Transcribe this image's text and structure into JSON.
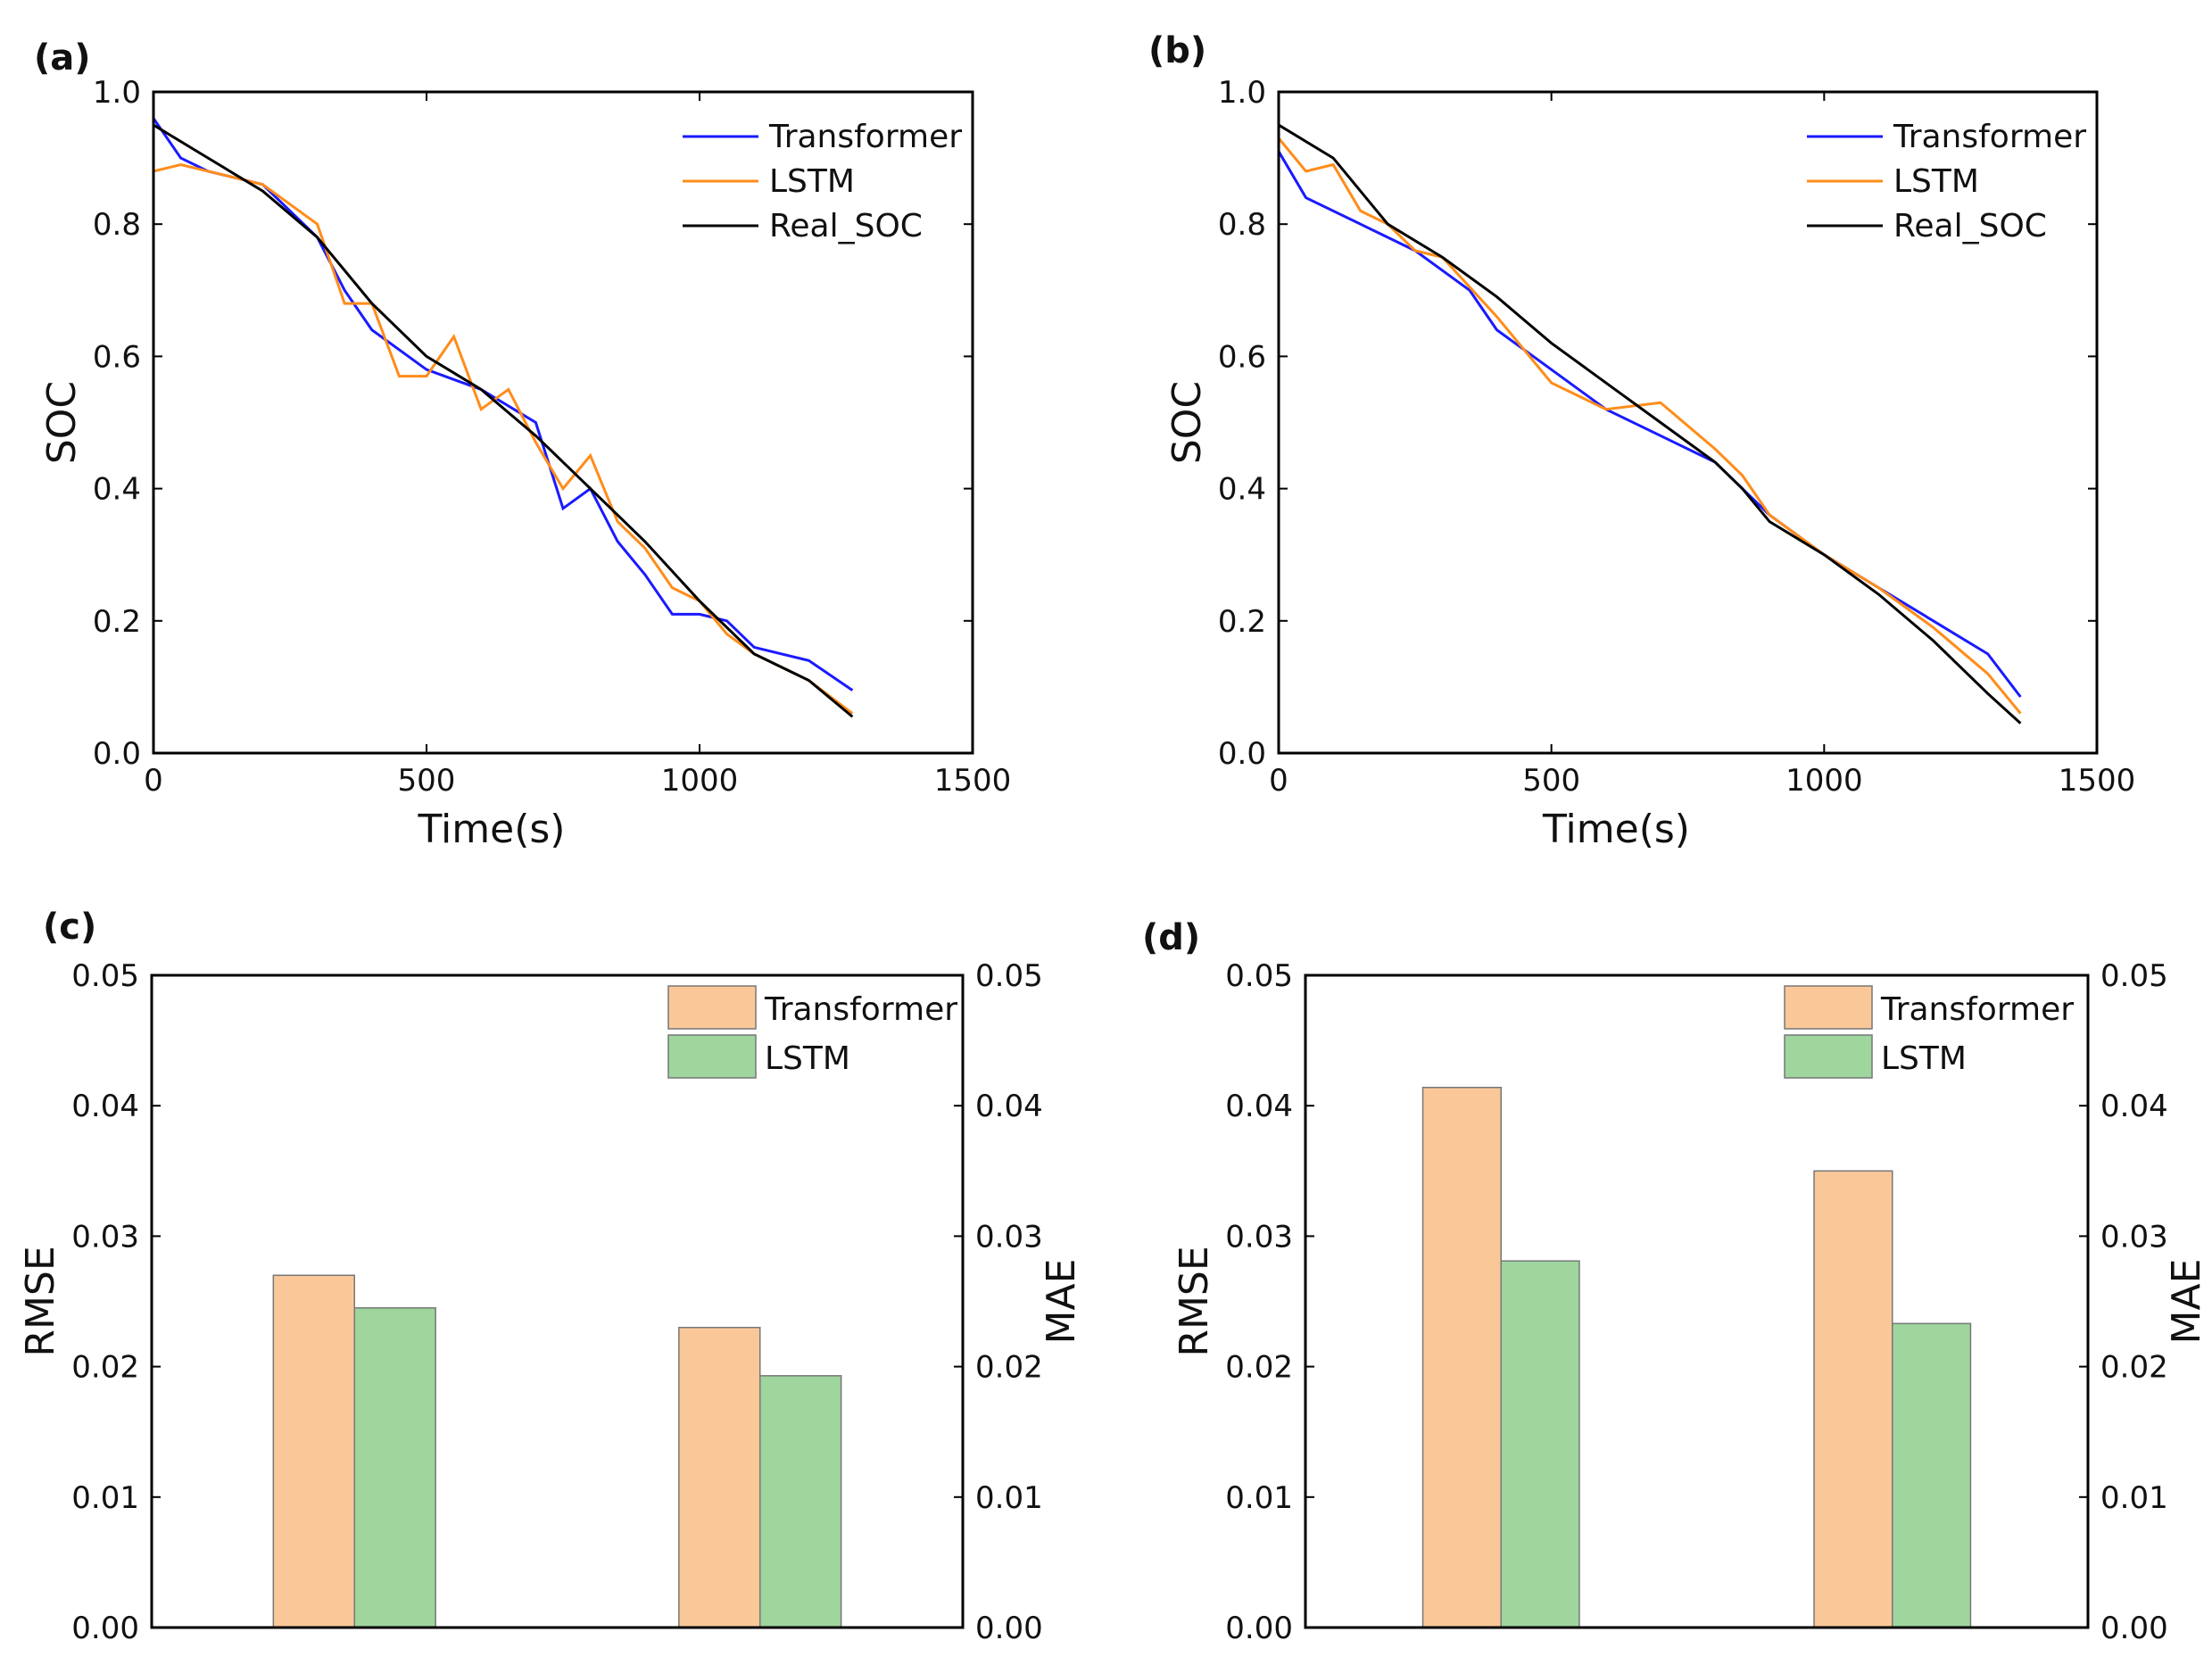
{
  "chart_data": [
    {
      "panel": "(a)",
      "type": "line",
      "xlabel": "Time(s)",
      "ylabel": "SOC",
      "xlim": [
        0,
        1500
      ],
      "ylim": [
        0,
        1.0
      ],
      "xticks": [
        0,
        500,
        1000,
        1500
      ],
      "yticks": [
        "0.0",
        "0.2",
        "0.4",
        "0.6",
        "0.8",
        "1.0"
      ],
      "legend": "top-right",
      "series": [
        {
          "name": "Transformer",
          "color": "#1a1aff",
          "points": [
            [
              0,
              0.96
            ],
            [
              50,
              0.9
            ],
            [
              100,
              0.88
            ],
            [
              200,
              0.86
            ],
            [
              300,
              0.78
            ],
            [
              350,
              0.7
            ],
            [
              400,
              0.64
            ],
            [
              500,
              0.58
            ],
            [
              600,
              0.55
            ],
            [
              700,
              0.5
            ],
            [
              750,
              0.37
            ],
            [
              800,
              0.4
            ],
            [
              850,
              0.32
            ],
            [
              900,
              0.27
            ],
            [
              950,
              0.21
            ],
            [
              1000,
              0.21
            ],
            [
              1050,
              0.2
            ],
            [
              1100,
              0.16
            ],
            [
              1200,
              0.14
            ],
            [
              1280,
              0.095
            ]
          ]
        },
        {
          "name": "LSTM",
          "color": "#ff8c1a",
          "points": [
            [
              0,
              0.88
            ],
            [
              50,
              0.89
            ],
            [
              100,
              0.88
            ],
            [
              200,
              0.86
            ],
            [
              250,
              0.83
            ],
            [
              300,
              0.8
            ],
            [
              350,
              0.68
            ],
            [
              400,
              0.68
            ],
            [
              450,
              0.57
            ],
            [
              500,
              0.57
            ],
            [
              550,
              0.63
            ],
            [
              600,
              0.52
            ],
            [
              650,
              0.55
            ],
            [
              700,
              0.47
            ],
            [
              750,
              0.4
            ],
            [
              800,
              0.45
            ],
            [
              850,
              0.35
            ],
            [
              900,
              0.31
            ],
            [
              950,
              0.25
            ],
            [
              1000,
              0.23
            ],
            [
              1050,
              0.18
            ],
            [
              1100,
              0.15
            ],
            [
              1200,
              0.11
            ],
            [
              1280,
              0.06
            ]
          ]
        },
        {
          "name": "Real_SOC",
          "color": "#000000",
          "points": [
            [
              0,
              0.95
            ],
            [
              100,
              0.9
            ],
            [
              200,
              0.85
            ],
            [
              300,
              0.78
            ],
            [
              400,
              0.68
            ],
            [
              500,
              0.6
            ],
            [
              600,
              0.55
            ],
            [
              700,
              0.48
            ],
            [
              800,
              0.4
            ],
            [
              900,
              0.32
            ],
            [
              1000,
              0.23
            ],
            [
              1100,
              0.15
            ],
            [
              1200,
              0.11
            ],
            [
              1280,
              0.055
            ]
          ]
        }
      ]
    },
    {
      "panel": "(b)",
      "type": "line",
      "xlabel": "Time(s)",
      "ylabel": "SOC",
      "xlim": [
        0,
        1500
      ],
      "ylim": [
        0,
        1.0
      ],
      "xticks": [
        0,
        500,
        1000,
        1500
      ],
      "yticks": [
        "0.0",
        "0.2",
        "0.4",
        "0.6",
        "0.8",
        "1.0"
      ],
      "legend": "top-right",
      "series": [
        {
          "name": "Transformer",
          "color": "#1a1aff",
          "points": [
            [
              0,
              0.91
            ],
            [
              50,
              0.84
            ],
            [
              150,
              0.8
            ],
            [
              250,
              0.76
            ],
            [
              350,
              0.7
            ],
            [
              400,
              0.64
            ],
            [
              500,
              0.58
            ],
            [
              600,
              0.52
            ],
            [
              700,
              0.48
            ],
            [
              800,
              0.44
            ],
            [
              900,
              0.36
            ],
            [
              1000,
              0.3
            ],
            [
              1100,
              0.25
            ],
            [
              1200,
              0.2
            ],
            [
              1300,
              0.15
            ],
            [
              1360,
              0.085
            ]
          ]
        },
        {
          "name": "LSTM",
          "color": "#ff8c1a",
          "points": [
            [
              0,
              0.93
            ],
            [
              50,
              0.88
            ],
            [
              100,
              0.89
            ],
            [
              150,
              0.82
            ],
            [
              200,
              0.8
            ],
            [
              250,
              0.76
            ],
            [
              300,
              0.75
            ],
            [
              400,
              0.66
            ],
            [
              500,
              0.56
            ],
            [
              600,
              0.52
            ],
            [
              700,
              0.53
            ],
            [
              800,
              0.46
            ],
            [
              850,
              0.42
            ],
            [
              900,
              0.36
            ],
            [
              1000,
              0.3
            ],
            [
              1100,
              0.25
            ],
            [
              1200,
              0.19
            ],
            [
              1300,
              0.12
            ],
            [
              1360,
              0.06
            ]
          ]
        },
        {
          "name": "Real_SOC",
          "color": "#000000",
          "points": [
            [
              0,
              0.95
            ],
            [
              100,
              0.9
            ],
            [
              200,
              0.8
            ],
            [
              300,
              0.75
            ],
            [
              400,
              0.69
            ],
            [
              500,
              0.62
            ],
            [
              600,
              0.56
            ],
            [
              700,
              0.5
            ],
            [
              800,
              0.44
            ],
            [
              850,
              0.4
            ],
            [
              900,
              0.35
            ],
            [
              1000,
              0.3
            ],
            [
              1100,
              0.24
            ],
            [
              1200,
              0.17
            ],
            [
              1300,
              0.09
            ],
            [
              1360,
              0.045
            ]
          ]
        }
      ]
    },
    {
      "panel": "(c)",
      "type": "bar",
      "ylabel": "RMSE",
      "ylabel_right": "MAE",
      "ylim": [
        0,
        0.05
      ],
      "yticks": [
        "0.00",
        "0.01",
        "0.02",
        "0.03",
        "0.04",
        "0.05"
      ],
      "legend": "top-right",
      "categories": [
        "RMSE",
        "MAE"
      ],
      "series": [
        {
          "name": "Transformer",
          "color": "#fac898",
          "values": [
            0.027,
            0.023
          ]
        },
        {
          "name": "LSTM",
          "color": "#9ed69e",
          "values": [
            0.0245,
            0.0193
          ]
        }
      ]
    },
    {
      "panel": "(d)",
      "type": "bar",
      "ylabel": "RMSE",
      "ylabel_right": "MAE",
      "ylim": [
        0,
        0.05
      ],
      "yticks": [
        "0.00",
        "0.01",
        "0.02",
        "0.03",
        "0.04",
        "0.05"
      ],
      "legend": "top-right",
      "categories": [
        "RMSE",
        "MAE"
      ],
      "series": [
        {
          "name": "Transformer",
          "color": "#fac898",
          "values": [
            0.0414,
            0.035
          ]
        },
        {
          "name": "LSTM",
          "color": "#9ed69e",
          "values": [
            0.0281,
            0.0233
          ]
        }
      ]
    }
  ]
}
